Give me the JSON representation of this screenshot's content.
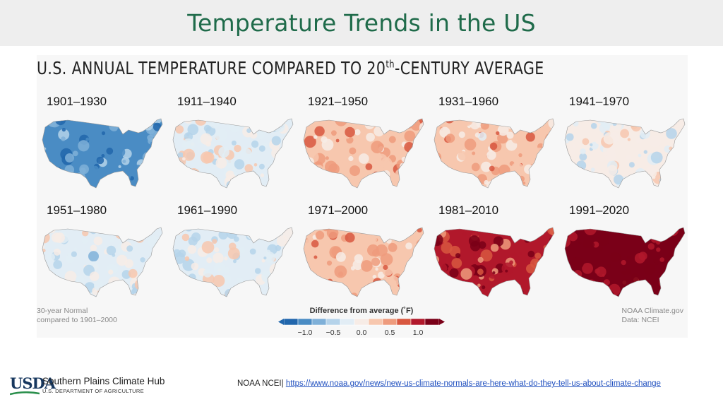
{
  "slide": {
    "title": "Temperature Trends in the US"
  },
  "graphic": {
    "title_prefix": "U.S. ANNUAL TEMPERATURE COMPARED TO 20",
    "title_sup": "th",
    "title_suffix": "-CENTURY AVERAGE",
    "note_left_line1": "30-year Normal",
    "note_left_line2": "compared to 1901–2000",
    "note_right_line1": "NOAA Climate.gov",
    "note_right_line2": "Data: NCEI"
  },
  "panels": [
    {
      "label": "1901–1930",
      "anomaly": -0.9
    },
    {
      "label": "1911–1940",
      "anomaly": -0.15
    },
    {
      "label": "1921–1950",
      "anomaly": 0.3
    },
    {
      "label": "1931–1960",
      "anomaly": 0.3
    },
    {
      "label": "1941–1970",
      "anomaly": -0.1
    },
    {
      "label": "1951–1980",
      "anomaly": -0.25
    },
    {
      "label": "1961–1990",
      "anomaly": -0.15
    },
    {
      "label": "1971–2000",
      "anomaly": 0.35
    },
    {
      "label": "1981–2010",
      "anomaly": 0.95
    },
    {
      "label": "1991–2020",
      "anomaly": 1.3
    }
  ],
  "legend": {
    "title": "Difference from average (˚F)",
    "ticks": [
      "−1.0",
      "−0.5",
      "0.0",
      "0.5",
      "1.0"
    ],
    "colors": [
      "#2166ac",
      "#4a8cc4",
      "#7fb0d8",
      "#b5d3ea",
      "#e2edf5",
      "#f7ece6",
      "#f7c7ae",
      "#ee9b7d",
      "#d8573f",
      "#b1182b",
      "#7a0018"
    ]
  },
  "footer": {
    "logo_text": "USDA",
    "hub_name": "Southern Plains Climate Hub",
    "hub_dept": "U.S. DEPARTMENT OF AGRICULTURE",
    "citation_prefix": "NOAA NCEI| ",
    "citation_link": "https://www.noaa.gov/news/new-us-climate-normals-are-here-what-do-they-tell-us-about-climate-change"
  }
}
